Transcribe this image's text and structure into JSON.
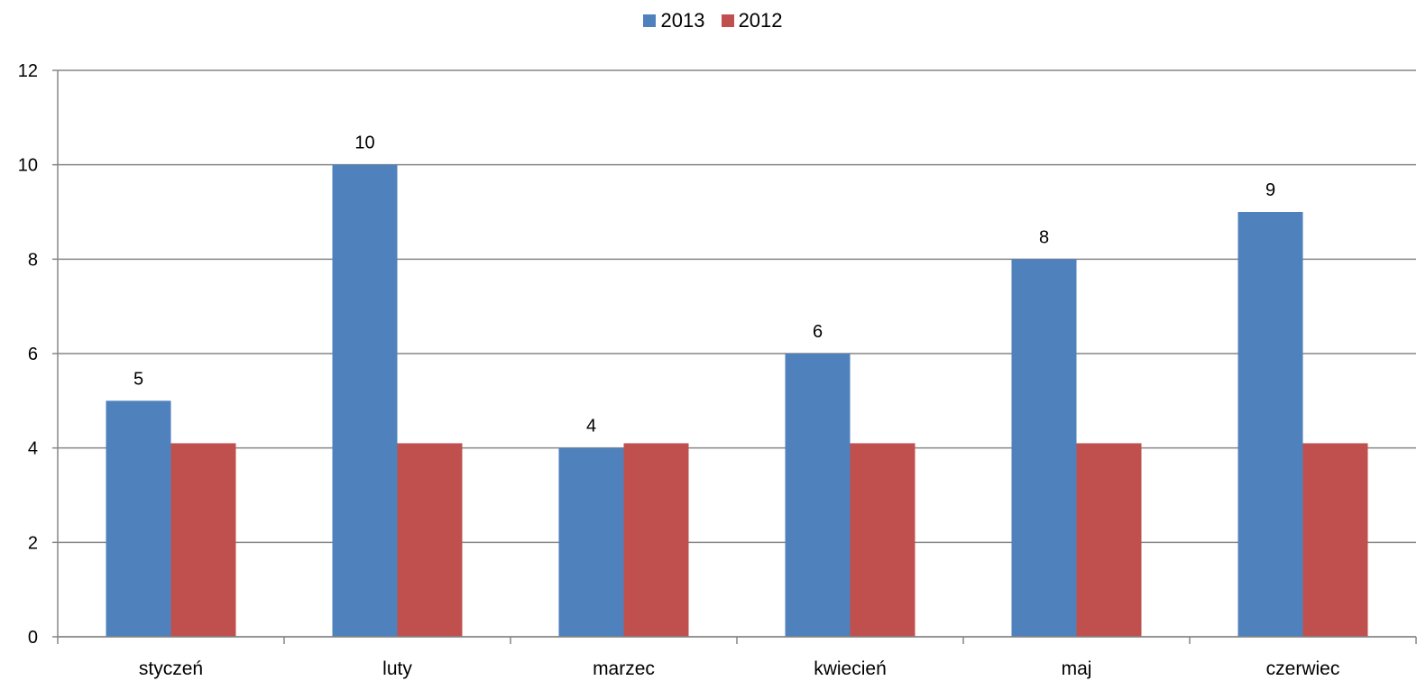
{
  "chart_data": {
    "type": "bar",
    "categories": [
      "styczeń",
      "luty",
      "marzec",
      "kwiecień",
      "maj",
      "czerwiec"
    ],
    "series": [
      {
        "name": "2013",
        "values": [
          5,
          10,
          4,
          6,
          8,
          9
        ],
        "color": "#4F81BD",
        "data_labels": true
      },
      {
        "name": "2012",
        "values": [
          4.1,
          4.1,
          4.1,
          4.1,
          4.1,
          4.1
        ],
        "color": "#C0504D",
        "data_labels": false
      }
    ],
    "ylim": [
      0,
      12
    ],
    "yticks": [
      0,
      2,
      4,
      6,
      8,
      10,
      12
    ],
    "grid": true,
    "legend_position": "top-center",
    "title": "",
    "xlabel": "",
    "ylabel": ""
  }
}
